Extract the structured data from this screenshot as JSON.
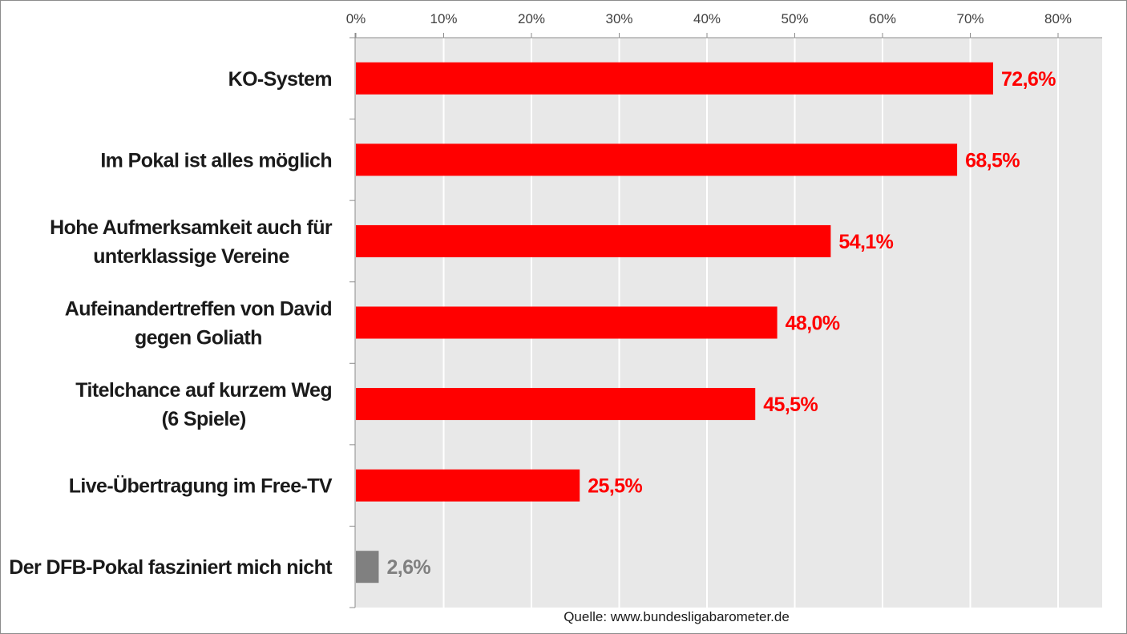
{
  "chart_data": {
    "type": "bar",
    "orientation": "horizontal",
    "categories": [
      [
        "KO-System"
      ],
      [
        "Im Pokal ist alles möglich"
      ],
      [
        "Hohe Aufmerksamkeit auch für",
        "unterklassige Vereine"
      ],
      [
        "Aufeinandertreffen von David",
        "gegen Goliath"
      ],
      [
        "Titelchance auf kurzem Weg",
        "(6 Spiele)"
      ],
      [
        "Live-Übertragung im Free-TV"
      ],
      [
        "Der DFB-Pokal fasziniert mich nicht"
      ]
    ],
    "values": [
      72.6,
      68.5,
      54.1,
      48.0,
      45.5,
      25.5,
      2.6
    ],
    "value_labels": [
      "72,6%",
      "68,5%",
      "54,1%",
      "48,0%",
      "45,5%",
      "25,5%",
      "2,6%"
    ],
    "bar_colors": [
      "#ff0000",
      "#ff0000",
      "#ff0000",
      "#ff0000",
      "#ff0000",
      "#ff0000",
      "#808080"
    ],
    "label_colors": [
      "#ff0000",
      "#ff0000",
      "#ff0000",
      "#ff0000",
      "#ff0000",
      "#ff0000",
      "#808080"
    ],
    "xlim": [
      0,
      85
    ],
    "x_ticks": [
      0,
      10,
      20,
      30,
      40,
      50,
      60,
      70,
      80
    ],
    "x_tick_labels": [
      "0%",
      "10%",
      "20%",
      "30%",
      "40%",
      "50%",
      "60%",
      "70%",
      "80%"
    ],
    "axis_position": "top",
    "grid": true,
    "plot_background": "#e8e8e8",
    "source": "Quelle: www.bundesligabarometer.de"
  }
}
